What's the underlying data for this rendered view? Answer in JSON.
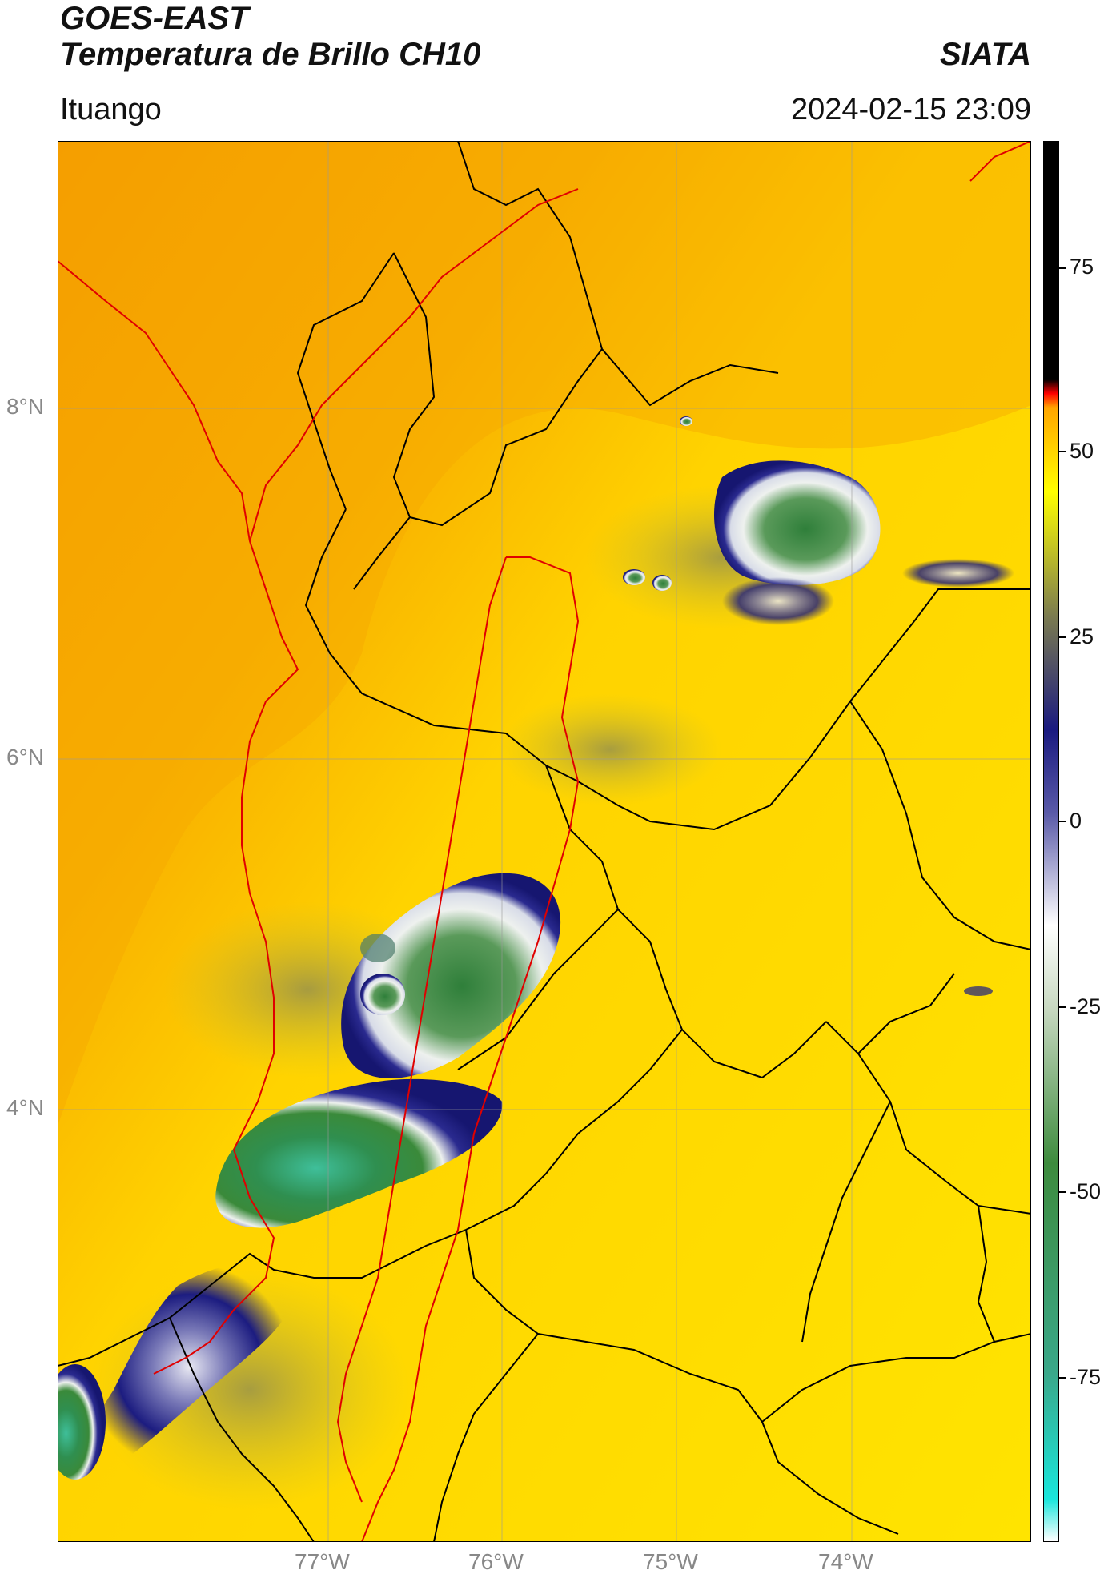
{
  "header": {
    "title_line1": "GOES-EAST",
    "title_line2": "Temperatura de Brillo CH10",
    "brand": "SIATA",
    "location": "Ituango",
    "timestamp": "2024-02-15 23:09"
  },
  "map": {
    "lat_labels": [
      "8°N",
      "6°N",
      "4°N"
    ],
    "lon_labels": [
      "77°W",
      "76°W",
      "75°W",
      "74°W"
    ],
    "colors": {
      "warm_orange": "#f59c00",
      "mid_yellow": "#ffd800",
      "cloud_blue": "#1a1a7a",
      "cloud_white": "#eef0ee",
      "cloud_green": "#3d8b3d",
      "cloud_teal": "#3fbf9a",
      "region_border": "#d00000",
      "admin_border": "#000000"
    }
  },
  "colorbar": {
    "tick_labels": [
      "75",
      "50",
      "25",
      "0",
      "-25",
      "-50",
      "-75"
    ],
    "colors": [
      "#ffffff",
      "#19e6dc",
      "#3aa88a",
      "#3d8b3d",
      "#c7d8c0",
      "#ffffff",
      "#5a5aa8",
      "#1a1a80",
      "#7a7a50",
      "#ffff00",
      "#ffa500",
      "#ff0000",
      "#000000"
    ]
  }
}
